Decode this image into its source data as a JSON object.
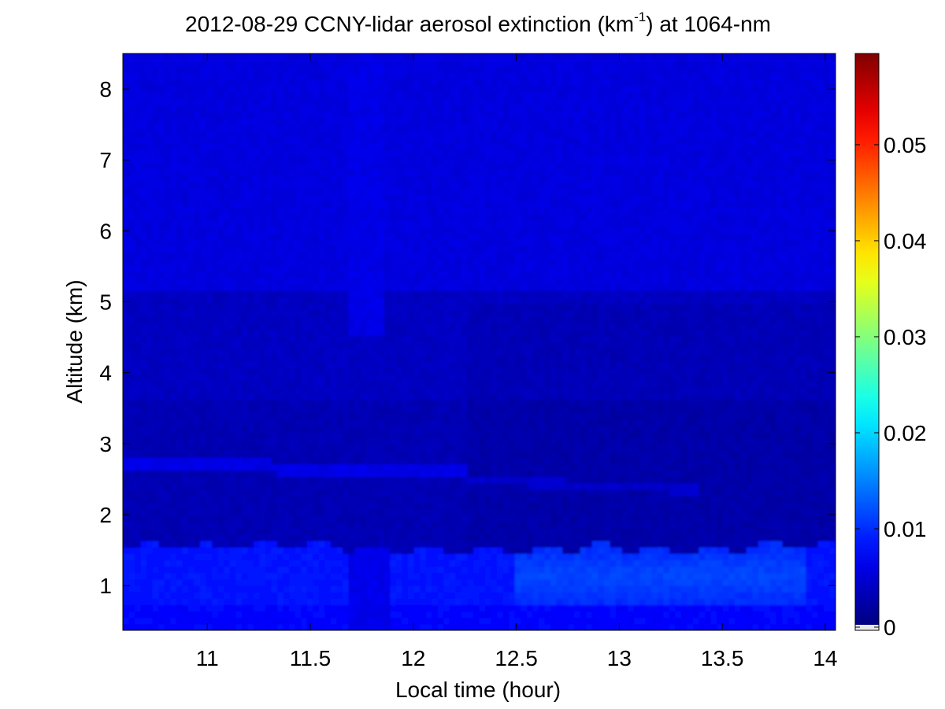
{
  "chart_data": {
    "type": "heatmap",
    "title": {
      "prefix": "2012-08-29 CCNY-lidar aerosol extinction (km",
      "superscript": "-1",
      "suffix": ") at 1064-nm"
    },
    "xlabel": "Local time (hour)",
    "ylabel": "Altitude (km)",
    "xlim": [
      10.59,
      14.05
    ],
    "ylim": [
      0.37,
      8.5
    ],
    "xticks": [
      11,
      11.5,
      12,
      12.5,
      13,
      13.5,
      14
    ],
    "xtick_labels": [
      "11",
      "11.5",
      "12",
      "12.5",
      "13",
      "13.5",
      "14"
    ],
    "yticks": [
      1,
      2,
      3,
      4,
      5,
      6,
      7,
      8
    ],
    "ytick_labels": [
      "1",
      "2",
      "3",
      "4",
      "5",
      "6",
      "7",
      "8"
    ],
    "colorbar": {
      "colormap": "jet",
      "clim": [
        0,
        0.0595
      ],
      "ticks": [
        0,
        0.01,
        0.02,
        0.03,
        0.04,
        0.05
      ],
      "tick_labels": [
        "0",
        "0.01",
        "0.02",
        "0.03",
        "0.04",
        "0.05"
      ],
      "below_min_color": "#e8e8e8"
    },
    "features": {
      "background_value": 0.0045,
      "boundary_layer": {
        "top_altitude_km": [
          [
            10.6,
            1.58
          ],
          [
            11.0,
            1.55
          ],
          [
            11.4,
            1.6
          ],
          [
            11.8,
            1.52
          ],
          [
            12.3,
            1.5
          ],
          [
            12.6,
            1.5
          ],
          [
            12.9,
            1.56
          ],
          [
            13.2,
            1.5
          ],
          [
            13.5,
            1.52
          ],
          [
            13.8,
            1.58
          ],
          [
            14.05,
            1.55
          ]
        ],
        "mean_value": 0.0085,
        "enhanced_segment": {
          "time_range": [
            12.5,
            13.9
          ],
          "value": 0.0115
        }
      },
      "aerosol_layer": {
        "time_range": [
          10.6,
          12.25
        ],
        "altitude_range_km": [
          2.62,
          2.8
        ],
        "value": 0.006
      },
      "vertical_streak": {
        "time_range": [
          11.68,
          11.86
        ],
        "altitude_range_km": [
          4.5,
          8.5
        ],
        "value": 0.006
      }
    }
  }
}
